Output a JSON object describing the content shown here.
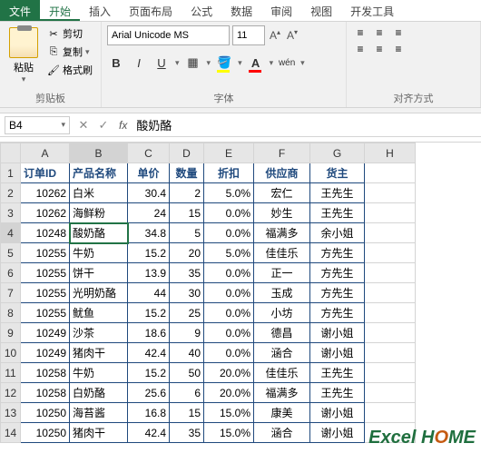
{
  "menu": {
    "file": "文件",
    "tabs": [
      "开始",
      "插入",
      "页面布局",
      "公式",
      "数据",
      "审阅",
      "视图",
      "开发工具"
    ],
    "active_index": 0
  },
  "ribbon": {
    "clipboard": {
      "label": "剪贴板",
      "paste": "粘贴",
      "cut": "剪切",
      "copy": "复制",
      "format_painter": "格式刷"
    },
    "font": {
      "label": "字体",
      "name": "Arial Unicode MS",
      "size": "11",
      "bold": "B",
      "italic": "I",
      "underline": "U",
      "wen": "wén"
    },
    "alignment": {
      "label": "对齐方式"
    }
  },
  "formula_bar": {
    "cell_ref": "B4",
    "value": "酸奶酪"
  },
  "columns": [
    "A",
    "B",
    "C",
    "D",
    "E",
    "F",
    "G",
    "H"
  ],
  "headers": [
    "订单ID",
    "产品名称",
    "单价",
    "数量",
    "折扣",
    "供应商",
    "货主"
  ],
  "rows": [
    {
      "n": 2,
      "id": "10262",
      "name": "白米",
      "price": "30.4",
      "qty": "2",
      "disc": "5.0%",
      "sup": "宏仁",
      "owner": "王先生"
    },
    {
      "n": 3,
      "id": "10262",
      "name": "海鲜粉",
      "price": "24",
      "qty": "15",
      "disc": "0.0%",
      "sup": "妙生",
      "owner": "王先生"
    },
    {
      "n": 4,
      "id": "10248",
      "name": "酸奶酪",
      "price": "34.8",
      "qty": "5",
      "disc": "0.0%",
      "sup": "福满多",
      "owner": "余小姐"
    },
    {
      "n": 5,
      "id": "10255",
      "name": "牛奶",
      "price": "15.2",
      "qty": "20",
      "disc": "5.0%",
      "sup": "佳佳乐",
      "owner": "方先生"
    },
    {
      "n": 6,
      "id": "10255",
      "name": "饼干",
      "price": "13.9",
      "qty": "35",
      "disc": "0.0%",
      "sup": "正一",
      "owner": "方先生"
    },
    {
      "n": 7,
      "id": "10255",
      "name": "光明奶酪",
      "price": "44",
      "qty": "30",
      "disc": "0.0%",
      "sup": "玉成",
      "owner": "方先生"
    },
    {
      "n": 8,
      "id": "10255",
      "name": "鱿鱼",
      "price": "15.2",
      "qty": "25",
      "disc": "0.0%",
      "sup": "小坊",
      "owner": "方先生"
    },
    {
      "n": 9,
      "id": "10249",
      "name": "沙茶",
      "price": "18.6",
      "qty": "9",
      "disc": "0.0%",
      "sup": "德昌",
      "owner": "谢小姐"
    },
    {
      "n": 10,
      "id": "10249",
      "name": "猪肉干",
      "price": "42.4",
      "qty": "40",
      "disc": "0.0%",
      "sup": "涵合",
      "owner": "谢小姐"
    },
    {
      "n": 11,
      "id": "10258",
      "name": "牛奶",
      "price": "15.2",
      "qty": "50",
      "disc": "20.0%",
      "sup": "佳佳乐",
      "owner": "王先生"
    },
    {
      "n": 12,
      "id": "10258",
      "name": "白奶酪",
      "price": "25.6",
      "qty": "6",
      "disc": "20.0%",
      "sup": "福满多",
      "owner": "王先生"
    },
    {
      "n": 13,
      "id": "10250",
      "name": "海苔酱",
      "price": "16.8",
      "qty": "15",
      "disc": "15.0%",
      "sup": "康美",
      "owner": "谢小姐"
    },
    {
      "n": 14,
      "id": "10250",
      "name": "猪肉干",
      "price": "42.4",
      "qty": "35",
      "disc": "15.0%",
      "sup": "涵合",
      "owner": "谢小姐"
    }
  ],
  "watermark": {
    "pre": "E",
    "mid": "x",
    "post": "cel",
    "brand": "H",
    "o": "O",
    "me": "ME"
  },
  "colors": {
    "accent": "#217346",
    "cell_border": "#1f497d",
    "header_text": "#1f497d",
    "ribbon_bg": "#f1f1f1",
    "grid_border": "#d4d4d4"
  }
}
